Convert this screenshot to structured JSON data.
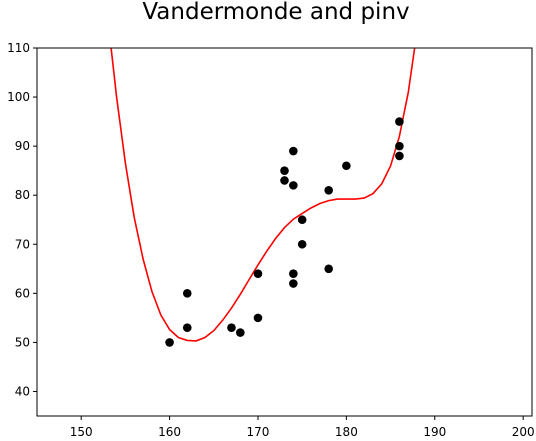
{
  "chart_data": {
    "type": "scatter",
    "title": "Vandermonde and pinv",
    "xlabel": "",
    "ylabel": "",
    "xlim": [
      145,
      201
    ],
    "ylim": [
      35,
      110
    ],
    "xticks": [
      150,
      160,
      170,
      180,
      190,
      200
    ],
    "yticks": [
      40,
      50,
      60,
      70,
      80,
      90,
      100,
      110
    ],
    "grid": false,
    "series": [
      {
        "kind": "scatter",
        "color": "#000000",
        "points": [
          [
            160,
            50
          ],
          [
            162,
            60
          ],
          [
            162,
            53
          ],
          [
            167,
            53
          ],
          [
            168,
            52
          ],
          [
            170,
            64
          ],
          [
            170,
            55
          ],
          [
            173,
            85
          ],
          [
            173,
            83
          ],
          [
            174,
            89
          ],
          [
            174,
            82
          ],
          [
            174,
            64
          ],
          [
            174,
            62
          ],
          [
            175,
            75
          ],
          [
            175,
            70
          ],
          [
            178,
            81
          ],
          [
            178,
            65
          ],
          [
            180,
            86
          ],
          [
            186,
            95
          ],
          [
            186,
            90
          ],
          [
            186,
            88
          ]
        ]
      },
      {
        "kind": "line",
        "color": "#ff0000",
        "points": [
          [
            153.0,
            116.2
          ],
          [
            154.0,
            100.0
          ],
          [
            155.0,
            86.5
          ],
          [
            156.0,
            75.5
          ],
          [
            157.0,
            67.0
          ],
          [
            158.0,
            60.4
          ],
          [
            159.0,
            55.6
          ],
          [
            160.0,
            52.6
          ],
          [
            161.0,
            51.0
          ],
          [
            162.0,
            50.4
          ],
          [
            163.0,
            50.3
          ],
          [
            164.0,
            51.0
          ],
          [
            165.0,
            52.4
          ],
          [
            166.0,
            54.5
          ],
          [
            167.0,
            57.0
          ],
          [
            168.0,
            59.8
          ],
          [
            169.0,
            62.8
          ],
          [
            170.0,
            65.8
          ],
          [
            171.0,
            68.6
          ],
          [
            172.0,
            71.2
          ],
          [
            173.0,
            73.4
          ],
          [
            174.0,
            75.1
          ],
          [
            175.0,
            76.3
          ],
          [
            176.0,
            77.4
          ],
          [
            177.0,
            78.3
          ],
          [
            178.0,
            78.9
          ],
          [
            179.0,
            79.2
          ],
          [
            180.0,
            79.2
          ],
          [
            181.0,
            79.2
          ],
          [
            182.0,
            79.4
          ],
          [
            183.0,
            80.3
          ],
          [
            184.0,
            82.3
          ],
          [
            185.0,
            86.0
          ],
          [
            186.0,
            92.0
          ],
          [
            187.0,
            101.0
          ],
          [
            188.0,
            113.5
          ]
        ]
      }
    ]
  }
}
